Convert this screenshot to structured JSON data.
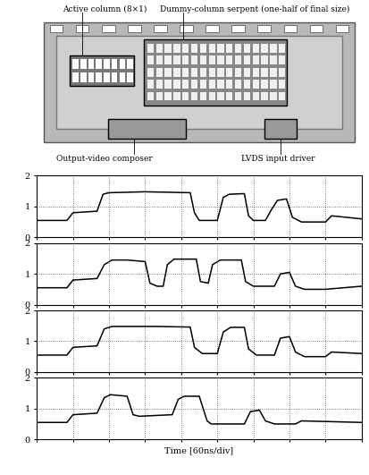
{
  "chip": {
    "labels": {
      "active": "Active column (8×1)",
      "serpent": "Dummy-column serpent (one-half of final size)",
      "composer": "Output-video composer",
      "lvds": "LVDS input driver"
    }
  },
  "chart_data": [
    {
      "type": "line",
      "color": "#000000",
      "grid": true,
      "tick_labels": "y",
      "xlim": [
        0,
        540
      ],
      "xticks": [
        0,
        60,
        120,
        180,
        240,
        300,
        360,
        420,
        480,
        540
      ],
      "ylim": [
        0,
        2
      ],
      "yticks": [
        0,
        1,
        2
      ],
      "x": [
        0,
        50,
        60,
        100,
        110,
        120,
        180,
        255,
        262,
        270,
        300,
        310,
        320,
        345,
        352,
        360,
        380,
        390,
        400,
        415,
        425,
        440,
        480,
        490,
        540
      ],
      "values": [
        0.55,
        0.55,
        0.8,
        0.85,
        1.4,
        1.45,
        1.48,
        1.45,
        0.8,
        0.55,
        0.55,
        1.3,
        1.4,
        1.42,
        0.7,
        0.55,
        0.55,
        0.9,
        1.2,
        1.25,
        0.65,
        0.5,
        0.5,
        0.7,
        0.6
      ]
    },
    {
      "type": "line",
      "color": "#000000",
      "grid": true,
      "tick_labels": "y",
      "xlim": [
        0,
        540
      ],
      "xticks": [
        0,
        60,
        120,
        180,
        240,
        300,
        360,
        420,
        480,
        540
      ],
      "ylim": [
        0,
        2
      ],
      "yticks": [
        0,
        1,
        2
      ],
      "x": [
        0,
        50,
        60,
        100,
        112,
        125,
        150,
        180,
        188,
        200,
        210,
        217,
        228,
        265,
        272,
        285,
        292,
        305,
        340,
        347,
        360,
        395,
        405,
        420,
        430,
        445,
        480,
        540
      ],
      "values": [
        0.55,
        0.55,
        0.8,
        0.85,
        1.3,
        1.45,
        1.45,
        1.4,
        0.7,
        0.6,
        0.6,
        1.3,
        1.48,
        1.48,
        0.75,
        0.7,
        1.3,
        1.45,
        1.45,
        0.75,
        0.6,
        0.6,
        1.0,
        1.05,
        0.6,
        0.5,
        0.5,
        0.6
      ]
    },
    {
      "type": "line",
      "color": "#000000",
      "grid": true,
      "tick_labels": "y",
      "xlim": [
        0,
        540
      ],
      "xticks": [
        0,
        60,
        120,
        180,
        240,
        300,
        360,
        420,
        480,
        540
      ],
      "ylim": [
        0,
        2
      ],
      "yticks": [
        0,
        1,
        2
      ],
      "x": [
        0,
        50,
        60,
        100,
        112,
        125,
        200,
        255,
        262,
        275,
        300,
        310,
        322,
        345,
        352,
        365,
        395,
        405,
        420,
        430,
        445,
        480,
        490,
        540
      ],
      "values": [
        0.55,
        0.55,
        0.8,
        0.85,
        1.4,
        1.48,
        1.48,
        1.46,
        0.8,
        0.6,
        0.6,
        1.3,
        1.45,
        1.45,
        0.75,
        0.55,
        0.55,
        1.1,
        1.15,
        0.65,
        0.5,
        0.5,
        0.65,
        0.6
      ]
    },
    {
      "type": "line",
      "color": "#000000",
      "grid": true,
      "tick_labels": "y",
      "xlim": [
        0,
        540
      ],
      "xticks": [
        0,
        60,
        120,
        180,
        240,
        300,
        360,
        420,
        480,
        540
      ],
      "ylim": [
        0,
        2
      ],
      "yticks": [
        0,
        1,
        2
      ],
      "xlabel": "Time [60ns/div]",
      "x": [
        0,
        50,
        60,
        100,
        112,
        122,
        150,
        160,
        170,
        225,
        235,
        245,
        270,
        283,
        290,
        300,
        345,
        355,
        370,
        380,
        395,
        430,
        440,
        540
      ],
      "values": [
        0.55,
        0.55,
        0.8,
        0.85,
        1.35,
        1.45,
        1.4,
        0.8,
        0.75,
        0.8,
        1.3,
        1.4,
        1.4,
        0.6,
        0.5,
        0.5,
        0.5,
        0.9,
        0.95,
        0.6,
        0.5,
        0.5,
        0.6,
        0.55
      ]
    }
  ]
}
